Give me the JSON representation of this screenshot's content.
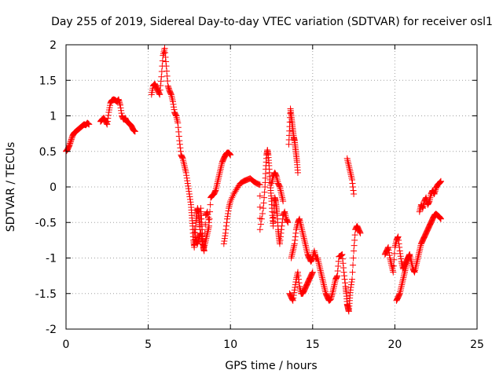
{
  "chart_data": {
    "type": "scatter",
    "title": "Day 255 of 2019, Sidereal Day-to-day VTEC variation (SDTVAR) for receiver osl1",
    "xlabel": "GPS time / hours",
    "ylabel": "SDTVAR / TECUs",
    "xlim": [
      0,
      25
    ],
    "ylim": [
      -2,
      2
    ],
    "xticks": [
      0,
      5,
      10,
      15,
      20,
      25
    ],
    "yticks": [
      -2,
      -1.5,
      -1,
      -0.5,
      0,
      0.5,
      1,
      1.5,
      2
    ],
    "xtick_labels": [
      "0",
      "5",
      "10",
      "15",
      "20",
      "25"
    ],
    "ytick_labels": [
      "-2",
      "-1.5",
      "-1",
      "-0.5",
      "0",
      "0.5",
      "1",
      "1.5",
      "2"
    ],
    "grid": true,
    "marker": "plus",
    "color": "#ff0000",
    "series": [
      {
        "name": "osl1",
        "x": [
          0.0,
          0.1,
          0.2,
          0.3,
          0.4,
          0.5,
          0.6,
          0.7,
          0.8,
          0.9,
          1.0,
          1.1,
          1.2,
          1.3,
          1.4,
          2.1,
          2.2,
          2.3,
          2.4,
          2.5,
          2.6,
          2.7,
          2.8,
          2.9,
          3.0,
          3.1,
          3.2,
          3.3,
          3.4,
          3.5,
          3.6,
          3.7,
          3.8,
          3.9,
          4.0,
          4.1,
          4.2,
          5.2,
          5.3,
          5.4,
          5.5,
          5.6,
          5.7,
          5.8,
          5.9,
          6.0,
          6.1,
          6.2,
          6.3,
          6.4,
          6.5,
          6.6,
          6.7,
          6.8,
          6.9,
          7.0,
          7.1,
          7.2,
          7.3,
          7.4,
          7.5,
          7.6,
          7.65,
          7.7,
          7.75,
          7.8,
          7.85,
          7.9,
          7.95,
          8.0,
          8.05,
          8.1,
          8.15,
          8.2,
          8.25,
          8.3,
          8.35,
          8.4,
          8.5,
          8.6,
          8.7,
          7.8,
          7.9,
          8.0,
          8.1,
          8.2,
          8.3,
          8.4,
          8.5,
          8.6,
          8.7,
          8.8,
          8.9,
          9.0,
          9.1,
          9.2,
          9.3,
          9.4,
          9.5,
          9.6,
          9.7,
          9.8,
          9.9,
          10.0,
          9.6,
          9.7,
          9.8,
          9.9,
          10.0,
          10.2,
          10.4,
          10.6,
          10.8,
          11.0,
          11.2,
          11.4,
          11.6,
          11.8,
          11.8,
          12.0,
          12.1,
          12.15,
          12.2,
          12.25,
          12.3,
          12.35,
          12.4,
          12.45,
          12.5,
          12.55,
          12.6,
          12.65,
          12.7,
          12.75,
          12.8,
          12.85,
          12.9,
          12.95,
          13.0,
          13.1,
          13.2,
          13.3,
          13.4,
          13.5,
          12.5,
          12.6,
          12.7,
          12.8,
          12.9,
          13.0,
          13.1,
          13.2,
          13.55,
          13.6,
          13.65,
          13.7,
          13.75,
          13.8,
          13.85,
          13.9,
          13.95,
          14.0,
          14.05,
          14.1,
          13.6,
          13.7,
          13.8,
          13.9,
          14.0,
          14.1,
          14.2,
          14.3,
          14.4,
          14.5,
          14.6,
          14.7,
          14.8,
          14.9,
          15.0,
          13.7,
          13.8,
          13.9,
          14.0,
          14.1,
          14.2,
          14.3,
          14.4,
          14.5,
          14.6,
          14.7,
          14.8,
          14.9,
          15.0,
          15.1,
          15.2,
          15.3,
          15.4,
          15.5,
          15.6,
          15.7,
          15.8,
          15.9,
          16.0,
          16.1,
          16.2,
          16.3,
          16.4,
          16.5,
          16.6,
          16.7,
          16.8,
          16.9,
          17.0,
          17.05,
          17.1,
          17.15,
          17.2,
          17.25,
          17.3,
          17.4,
          17.5,
          17.6,
          17.7,
          17.8,
          17.9,
          17.1,
          17.2,
          17.3,
          17.4,
          17.5,
          19.4,
          19.5,
          19.6,
          19.7,
          19.8,
          19.9,
          20.0,
          20.1,
          20.2,
          20.3,
          20.4,
          20.5,
          20.6,
          20.7,
          20.8,
          20.9,
          20.1,
          20.2,
          20.3,
          20.4,
          20.5,
          20.6,
          20.7,
          20.8,
          20.9,
          21.0,
          21.1,
          21.2,
          21.3,
          21.4,
          21.5,
          21.6,
          21.7,
          21.8,
          21.9,
          22.0,
          22.1,
          22.2,
          22.3,
          22.4,
          22.5,
          22.6,
          22.7,
          22.8,
          21.5,
          21.6,
          21.7,
          21.8,
          21.9,
          22.0,
          22.1,
          22.2,
          22.3,
          22.4,
          22.5,
          22.6,
          22.7,
          22.8
        ],
        "y": [
          0.5,
          0.53,
          0.58,
          0.65,
          0.72,
          0.76,
          0.78,
          0.8,
          0.82,
          0.84,
          0.86,
          0.88,
          0.87,
          0.9,
          0.88,
          0.92,
          0.95,
          0.97,
          0.93,
          0.88,
          1.05,
          1.18,
          1.22,
          1.23,
          1.22,
          1.2,
          1.23,
          1.15,
          1.0,
          0.95,
          0.97,
          0.92,
          0.9,
          0.88,
          0.85,
          0.8,
          0.78,
          1.3,
          1.42,
          1.45,
          1.4,
          1.35,
          1.3,
          1.55,
          1.85,
          1.95,
          1.7,
          1.42,
          1.35,
          1.3,
          1.2,
          1.05,
          1.0,
          0.9,
          0.65,
          0.45,
          0.4,
          0.3,
          0.2,
          0.05,
          -0.1,
          -0.25,
          -0.4,
          -0.55,
          -0.75,
          -0.85,
          -0.7,
          -0.5,
          -0.38,
          -0.3,
          -0.35,
          -0.45,
          -0.6,
          -0.3,
          -0.5,
          -0.7,
          -0.85,
          -0.9,
          -0.4,
          -0.35,
          -0.5,
          -0.6,
          -0.75,
          -0.8,
          -0.7,
          -0.65,
          -0.8,
          -0.85,
          -0.75,
          -0.65,
          -0.55,
          -0.15,
          -0.12,
          -0.1,
          -0.05,
          0.05,
          0.15,
          0.25,
          0.35,
          0.4,
          0.45,
          0.48,
          0.48,
          0.45,
          -0.8,
          -0.65,
          -0.45,
          -0.3,
          -0.2,
          -0.1,
          -0.02,
          0.05,
          0.08,
          0.1,
          0.12,
          0.08,
          0.05,
          0.03,
          -0.6,
          -0.3,
          0.0,
          0.25,
          0.45,
          0.52,
          0.45,
          0.3,
          0.1,
          -0.05,
          -0.2,
          -0.4,
          -0.55,
          -0.3,
          -0.15,
          -0.2,
          -0.3,
          -0.4,
          -0.6,
          -0.7,
          -0.8,
          -0.6,
          -0.4,
          -0.35,
          -0.45,
          -0.5,
          0.05,
          0.15,
          0.2,
          0.15,
          0.05,
          0.0,
          -0.1,
          -0.2,
          0.6,
          0.85,
          1.1,
          1.0,
          0.9,
          0.8,
          0.7,
          0.65,
          0.55,
          0.45,
          0.35,
          0.2,
          -1.5,
          -1.55,
          -1.6,
          -1.45,
          -1.3,
          -1.2,
          -1.4,
          -1.5,
          -1.5,
          -1.45,
          -1.4,
          -1.35,
          -1.3,
          -1.25,
          -1.2,
          -1.0,
          -0.9,
          -0.8,
          -0.6,
          -0.5,
          -0.45,
          -0.55,
          -0.65,
          -0.75,
          -0.85,
          -0.95,
          -1.0,
          -1.05,
          -1.0,
          -0.9,
          -1.0,
          -1.0,
          -1.1,
          -1.2,
          -1.3,
          -1.4,
          -1.5,
          -1.55,
          -1.6,
          -1.58,
          -1.5,
          -1.4,
          -1.3,
          -1.25,
          -0.98,
          -0.97,
          -0.95,
          -1.2,
          -1.4,
          -1.5,
          -1.65,
          -1.7,
          -1.75,
          -1.6,
          -1.45,
          -1.3,
          -0.9,
          -0.6,
          -0.55,
          -0.6,
          -0.65,
          0.4,
          0.3,
          0.2,
          0.1,
          -0.1,
          -0.95,
          -0.9,
          -0.85,
          -1.0,
          -1.1,
          -1.2,
          -0.85,
          -0.75,
          -0.7,
          -0.9,
          -1.05,
          -1.15,
          -1.1,
          -1.05,
          -1.0,
          -0.95,
          -1.6,
          -1.55,
          -1.5,
          -1.4,
          -1.3,
          -1.2,
          -1.1,
          -1.0,
          -0.95,
          -1.05,
          -1.15,
          -1.2,
          -1.1,
          -1.0,
          -0.9,
          -0.8,
          -0.75,
          -0.7,
          -0.65,
          -0.6,
          -0.55,
          -0.5,
          -0.45,
          -0.4,
          -0.38,
          -0.4,
          -0.42,
          -0.45,
          -0.35,
          -0.25,
          -0.3,
          -0.2,
          -0.15,
          -0.25,
          -0.2,
          -0.1,
          -0.05,
          -0.1,
          -0.02,
          0.03,
          0.05,
          0.08
        ]
      }
    ]
  }
}
